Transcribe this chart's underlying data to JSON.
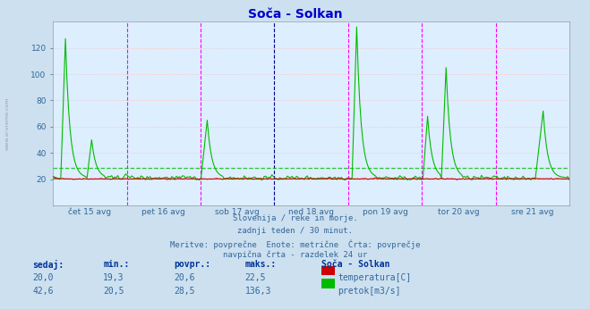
{
  "title": "Soča - Solkan",
  "title_color": "#0000cc",
  "bg_color": "#cce0f0",
  "plot_bg_color": "#ddeeff",
  "grid_color_h": "#ffbbbb",
  "grid_color_v": "#bbbbbb",
  "ylim": [
    0,
    140
  ],
  "yticks": [
    20,
    40,
    60,
    80,
    100,
    120
  ],
  "xlabel_color": "#336699",
  "text_info_lines": [
    "Slovenija / reke in morje.",
    "zadnji teden / 30 minut.",
    "Meritve: povprečne  Enote: metrične  Črta: povprečje",
    "navpična črta - razdelek 24 ur"
  ],
  "table_headers": [
    "sedaj:",
    "min.:",
    "povpr.:",
    "maks.:",
    "Soča - Solkan"
  ],
  "table_row1": [
    "20,0",
    "19,3",
    "20,6",
    "22,5",
    "temperatura[C]"
  ],
  "table_row2": [
    "42,6",
    "20,5",
    "28,5",
    "136,3",
    "pretok[m3/s]"
  ],
  "temp_color": "#cc0000",
  "flow_color": "#00bb00",
  "avg_flow": 28.5,
  "avg_temp": 20.6,
  "n_points": 336,
  "day_labels": [
    "čet 15 avg",
    "pet 16 avg",
    "sob 17 avg",
    "ned 18 avg",
    "pon 19 avg",
    "tor 20 avg",
    "sre 21 avg"
  ],
  "vline_positions": [
    0.1429,
    0.2857,
    0.4286,
    0.5714,
    0.7143,
    0.8571
  ],
  "vline_color_magenta": "#ff00ff",
  "vline_color_dark": "#000088",
  "sidebar_text": "www.si-vreme.com",
  "sidebar_color": "#888888"
}
